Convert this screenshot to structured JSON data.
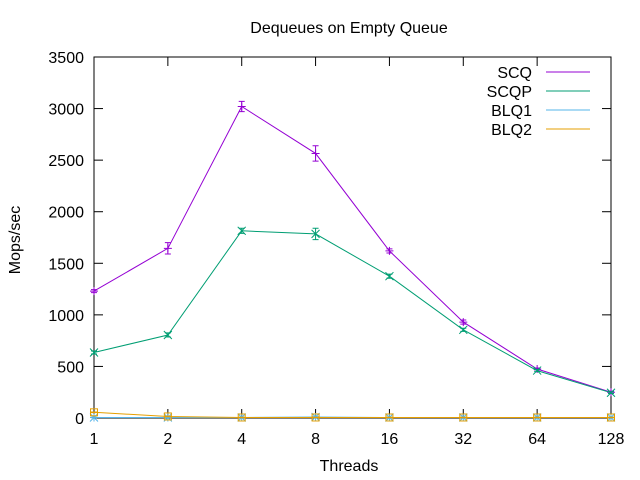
{
  "chart_data": {
    "type": "line",
    "title": "Dequeues on Empty Queue",
    "xlabel": "Threads",
    "ylabel": "Mops/sec",
    "x": [
      "1",
      "2",
      "4",
      "8",
      "16",
      "32",
      "64",
      "128"
    ],
    "ylim": [
      0,
      3500
    ],
    "yticks": [
      0,
      500,
      1000,
      1500,
      2000,
      2500,
      3000,
      3500
    ],
    "legend_position": "top-right",
    "grid": false,
    "series": [
      {
        "name": "SCQ",
        "color": "#9400d3",
        "marker": "plus",
        "values": [
          1230,
          1645,
          3020,
          2565,
          1620,
          930,
          475,
          250
        ],
        "errors": [
          15,
          55,
          50,
          75,
          20,
          20,
          10,
          10
        ]
      },
      {
        "name": "SCQP",
        "color": "#009e73",
        "marker": "cross",
        "values": [
          635,
          805,
          1815,
          1785,
          1375,
          855,
          460,
          245
        ],
        "errors": [
          15,
          20,
          25,
          55,
          20,
          15,
          10,
          8
        ]
      },
      {
        "name": "BLQ1",
        "color": "#56b4e9",
        "marker": "star",
        "values": [
          5,
          5,
          5,
          10,
          5,
          5,
          5,
          5
        ],
        "errors": [
          2,
          2,
          2,
          3,
          2,
          2,
          2,
          2
        ]
      },
      {
        "name": "BLQ2",
        "color": "#e69f00",
        "marker": "square",
        "values": [
          55,
          15,
          5,
          5,
          5,
          5,
          5,
          5
        ],
        "errors": [
          3,
          3,
          2,
          2,
          2,
          2,
          2,
          2
        ]
      }
    ]
  }
}
